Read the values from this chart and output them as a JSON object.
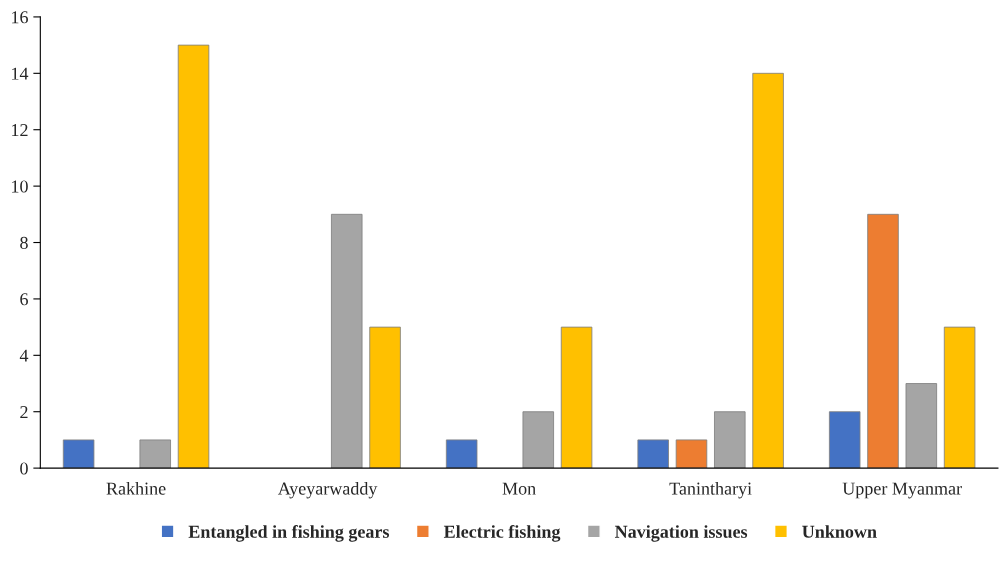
{
  "chart_data": {
    "type": "bar",
    "categories": [
      "Rakhine",
      "Ayeyarwaddy",
      "Mon",
      "Tanintharyi",
      "Upper Myanmar"
    ],
    "series": [
      {
        "name": "Entangled in fishing gears",
        "color": "#4472c4",
        "values": [
          1,
          0,
          1,
          1,
          2
        ]
      },
      {
        "name": "Electric fishing",
        "color": "#ed7d31",
        "values": [
          0,
          0,
          0,
          1,
          9
        ]
      },
      {
        "name": "Navigation issues",
        "color": "#a5a5a5",
        "values": [
          1,
          9,
          2,
          2,
          3
        ]
      },
      {
        "name": "Unknown",
        "color": "#ffc000",
        "values": [
          15,
          5,
          5,
          14,
          5
        ]
      }
    ],
    "ylim": [
      0,
      16
    ],
    "yticks": [
      0,
      2,
      4,
      6,
      8,
      10,
      12,
      14,
      16
    ],
    "grid": false,
    "legend": "bottom"
  }
}
